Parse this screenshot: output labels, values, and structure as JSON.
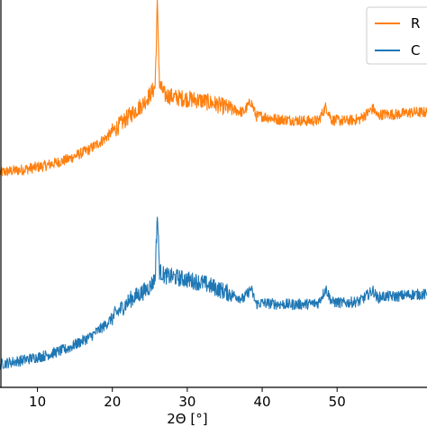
{
  "chart_data": {
    "type": "line",
    "xlabel": "2Θ [°]",
    "ylabel": "",
    "xlim": [
      5,
      62
    ],
    "ylim": [
      0,
      100
    ],
    "xticks": [
      10,
      20,
      30,
      40,
      50
    ],
    "xtick_labels": [
      "10",
      "20",
      "30",
      "40",
      "50"
    ],
    "grid": false,
    "legend_placement": "top-right",
    "legend": [
      "R",
      "C"
    ],
    "series": [
      {
        "name": "R",
        "color": "#ff7f0e",
        "x": [
          5.0,
          8.0,
          11.0,
          14.0,
          17.0,
          19.0,
          21.0,
          22.5,
          24.0,
          25.0,
          25.7,
          26.0,
          26.3,
          27.0,
          28.5,
          30.0,
          32.0,
          34.0,
          36.0,
          37.5,
          38.5,
          39.2,
          40.0,
          42.0,
          44.0,
          46.0,
          47.5,
          48.5,
          49.3,
          51.0,
          53.0,
          54.8,
          55.4,
          56.0,
          58.0,
          60.0,
          62.0
        ],
        "y": [
          55.5,
          56.2,
          57.2,
          58.8,
          61.5,
          64.2,
          67.8,
          70.5,
          73.0,
          75.5,
          77.5,
          99.0,
          78.0,
          75.5,
          74.8,
          74.5,
          74.0,
          73.0,
          71.8,
          71.0,
          73.8,
          70.0,
          70.0,
          69.2,
          69.0,
          68.8,
          68.8,
          72.5,
          69.0,
          68.8,
          69.2,
          72.0,
          70.0,
          70.5,
          70.5,
          71.0,
          71.0
        ]
      },
      {
        "name": "C",
        "color": "#1f77b4",
        "x": [
          5.0,
          8.0,
          11.0,
          14.0,
          17.0,
          19.0,
          21.0,
          22.5,
          24.0,
          25.0,
          25.7,
          26.0,
          26.3,
          27.0,
          28.5,
          30.0,
          32.0,
          34.0,
          36.0,
          37.5,
          38.5,
          39.2,
          40.0,
          42.0,
          44.0,
          46.0,
          47.5,
          48.5,
          49.3,
          51.0,
          53.0,
          54.8,
          55.4,
          56.0,
          58.0,
          60.0,
          62.0
        ],
        "y": [
          6.0,
          7.0,
          8.2,
          10.0,
          13.0,
          16.0,
          20.0,
          22.8,
          24.5,
          26.0,
          28.0,
          45.0,
          30.0,
          28.8,
          28.4,
          27.8,
          27.0,
          25.5,
          24.0,
          22.8,
          25.5,
          21.5,
          21.8,
          21.5,
          21.4,
          21.5,
          21.8,
          25.5,
          22.0,
          21.8,
          22.2,
          25.0,
          23.0,
          23.5,
          23.5,
          24.0,
          24.0
        ]
      }
    ]
  }
}
